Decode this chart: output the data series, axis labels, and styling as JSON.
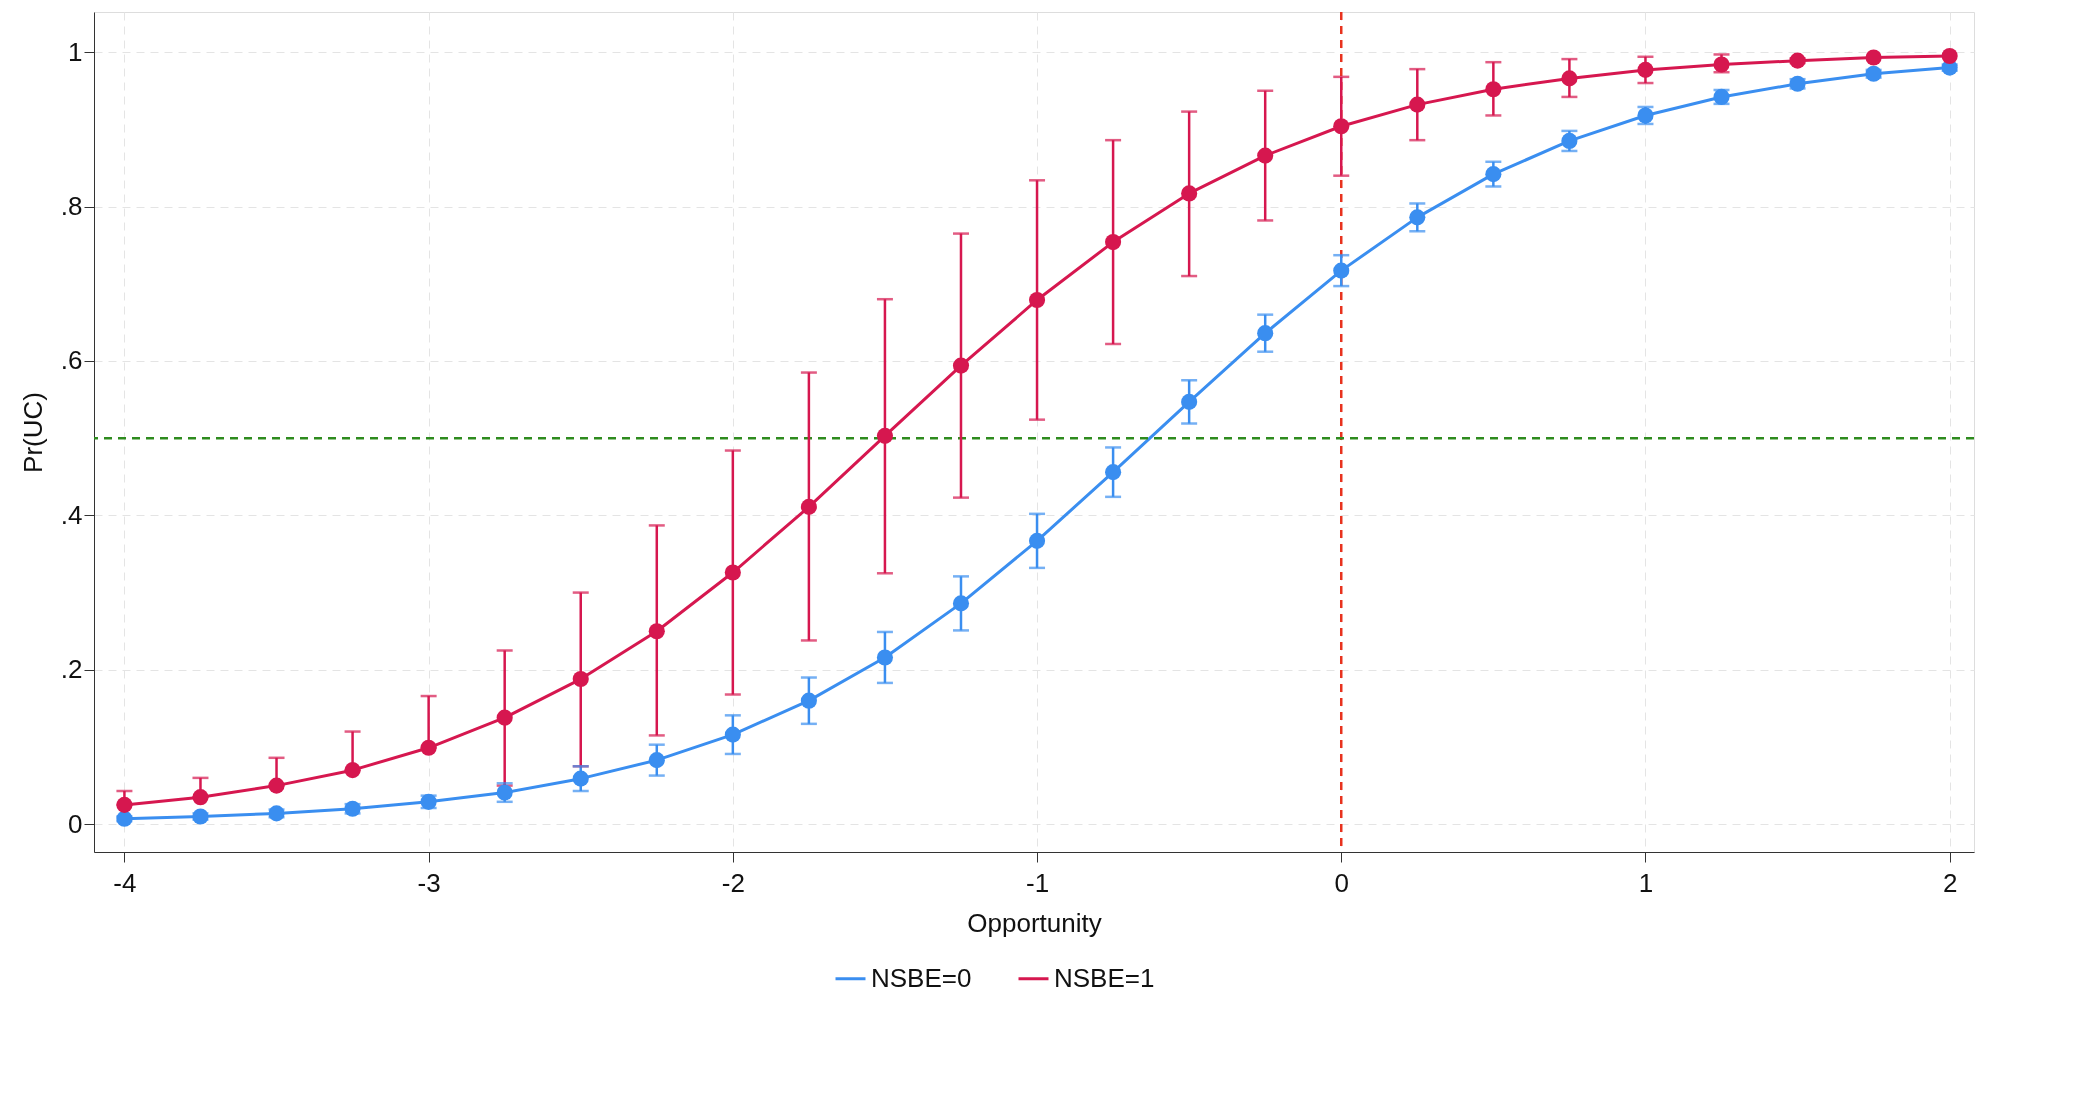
{
  "chart_data": {
    "type": "line",
    "xlabel": "Opportunity",
    "ylabel": "Pr(UC)",
    "x": [
      -4,
      -3.75,
      -3.5,
      -3.25,
      -3,
      -2.75,
      -2.5,
      -2.25,
      -2,
      -1.75,
      -1.5,
      -1.25,
      -1,
      -0.75,
      -0.5,
      -0.25,
      0,
      0.25,
      0.5,
      0.75,
      1,
      1.25,
      1.5,
      1.75,
      2
    ],
    "series": [
      {
        "name": "NSBE=0",
        "color": "#3a8ef0",
        "values": [
          0.007,
          0.01,
          0.014,
          0.02,
          0.029,
          0.041,
          0.059,
          0.083,
          0.116,
          0.16,
          0.216,
          0.286,
          0.367,
          0.456,
          0.547,
          0.636,
          0.717,
          0.786,
          0.842,
          0.885,
          0.918,
          0.942,
          0.959,
          0.972,
          0.98
        ],
        "errors": [
          0.003,
          0.004,
          0.005,
          0.006,
          0.008,
          0.012,
          0.016,
          0.02,
          0.025,
          0.03,
          0.033,
          0.035,
          0.035,
          0.032,
          0.028,
          0.024,
          0.02,
          0.018,
          0.016,
          0.013,
          0.011,
          0.009,
          0.006,
          0.005,
          0.004
        ]
      },
      {
        "name": "NSBE=1",
        "color": "#d6174f",
        "values": [
          0.025,
          0.035,
          0.05,
          0.07,
          0.099,
          0.138,
          0.188,
          0.25,
          0.326,
          0.411,
          0.503,
          0.594,
          0.679,
          0.754,
          0.817,
          0.866,
          0.904,
          0.932,
          0.952,
          0.966,
          0.977,
          0.984,
          0.989,
          0.993,
          0.995
        ],
        "errors": [
          [
            0.025,
            0.043
          ],
          [
            0.035,
            0.06
          ],
          [
            0.05,
            0.086
          ],
          [
            0.07,
            0.12
          ],
          [
            0.099,
            0.166
          ],
          [
            0.05,
            0.225
          ],
          [
            0.075,
            0.3
          ],
          [
            0.115,
            0.387
          ],
          [
            0.168,
            0.484
          ],
          [
            0.238,
            0.585
          ],
          [
            0.325,
            0.68
          ],
          [
            0.423,
            0.765
          ],
          [
            0.524,
            0.834
          ],
          [
            0.622,
            0.886
          ],
          [
            0.71,
            0.923
          ],
          [
            0.782,
            0.95
          ],
          [
            0.84,
            0.968
          ],
          [
            0.886,
            0.978
          ],
          [
            0.918,
            0.987
          ],
          [
            0.942,
            0.991
          ],
          [
            0.96,
            0.994
          ],
          [
            0.974,
            0.997
          ],
          0.003,
          null,
          null
        ]
      }
    ],
    "xlim": [
      -4.1,
      2.08
    ],
    "xticks": [
      -4,
      -3,
      -2,
      -1,
      0,
      1,
      2
    ],
    "ylim": [
      -0.036,
      1.052
    ],
    "yticks": [
      0,
      {
        "value": 0.2,
        "label": ".2"
      },
      {
        "value": 0.4,
        "label": ".4"
      },
      {
        "value": 0.6,
        "label": ".6"
      },
      {
        "value": 0.8,
        "label": ".8"
      },
      1
    ],
    "ref_lines": [
      {
        "axis": "x",
        "value": 0,
        "color": "#e8321e",
        "line_style": "dashed"
      },
      {
        "axis": "y",
        "value": 0.5,
        "color": "#2e8b1e",
        "line_style": "dashed"
      }
    ],
    "grid": true,
    "legend": "bottom",
    "marker": "circle",
    "line_style": "solid"
  }
}
